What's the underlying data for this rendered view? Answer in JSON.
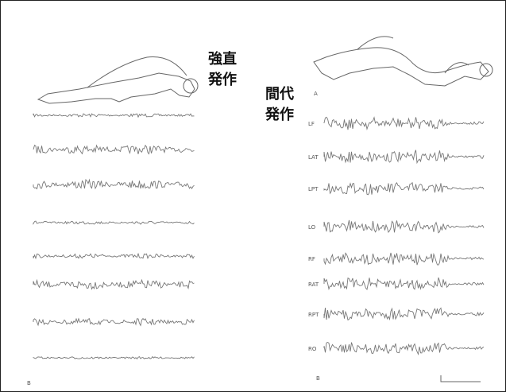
{
  "left_panel": {
    "label_lines": [
      "強直",
      "発作"
    ],
    "marker": "B"
  },
  "right_panel": {
    "label_lines": [
      "間代",
      "発作"
    ],
    "marker_top": "A",
    "marker_bottom": "B",
    "channels": [
      "LF",
      "LAT",
      "LPT",
      "LO",
      "RF",
      "RAT",
      "RPT",
      "RO"
    ]
  }
}
